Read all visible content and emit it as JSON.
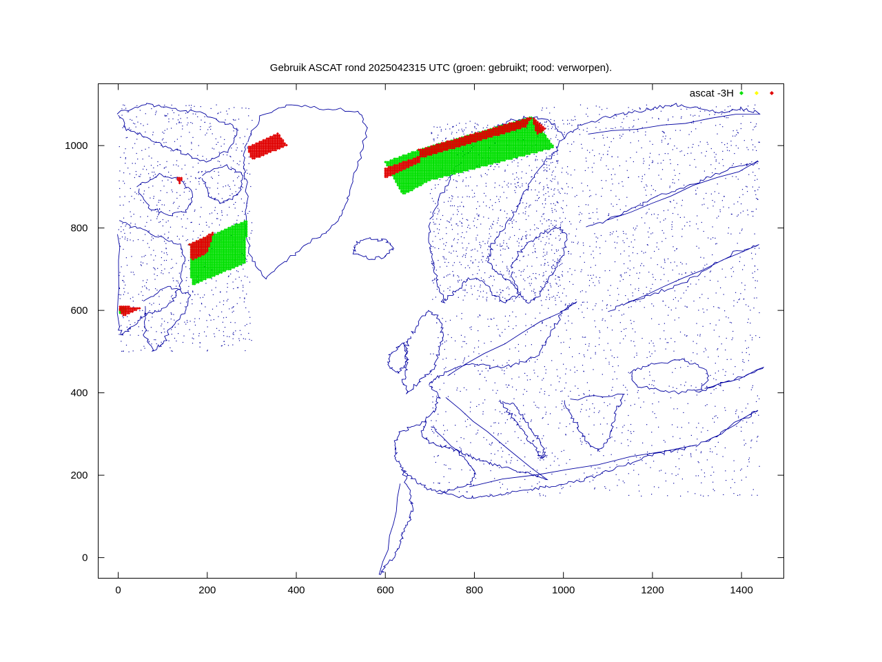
{
  "chart_data": {
    "type": "scatter",
    "title": "Gebruik ASCAT rond 2025042315 UTC (groen: gebruikt; rood: verworpen).",
    "xlabel": "",
    "ylabel": "",
    "xlim": [
      -45,
      1495
    ],
    "ylim": [
      -50,
      1150
    ],
    "x_ticks": [
      0,
      200,
      400,
      600,
      800,
      1000,
      1200,
      1400
    ],
    "y_ticks": [
      0,
      200,
      400,
      600,
      800,
      1000
    ],
    "grid": false,
    "legend": {
      "placement": "top-right",
      "label": "ascat -3H"
    },
    "colors": {
      "used": "#00e000",
      "marginal": "#ffff00",
      "rejected": "#e00000",
      "coastline": "#0000a0"
    },
    "series": [
      {
        "role": "used",
        "color": "#00e000",
        "regions": [
          {
            "polygon": [
              [
                160,
                760
              ],
              [
                290,
                820
              ],
              [
                285,
                715
              ],
              [
                165,
                660
              ]
            ]
          },
          {
            "polygon": [
              [
                640,
                880
              ],
              [
                600,
                960
              ],
              [
                675,
                990
              ],
              [
                930,
                1070
              ],
              [
                980,
                995
              ],
              [
                700,
                915
              ]
            ]
          },
          {
            "polygon": [
              [
                0,
                605
              ],
              [
                15,
                607
              ],
              [
                18,
                595
              ],
              [
                2,
                590
              ]
            ]
          }
        ]
      },
      {
        "role": "rejected",
        "color": "#e00000",
        "regions": [
          {
            "polygon": [
              [
                290,
                995
              ],
              [
                360,
                1030
              ],
              [
                380,
                1000
              ],
              [
                300,
                965
              ]
            ]
          },
          {
            "polygon": [
              [
                600,
                945
              ],
              [
                680,
                975
              ],
              [
                680,
                960
              ],
              [
                600,
                920
              ]
            ]
          },
          {
            "polygon": [
              [
                675,
                990
              ],
              [
                930,
                1070
              ],
              [
                915,
                1045
              ],
              [
                680,
                970
              ]
            ]
          },
          {
            "polygon": [
              [
                930,
                1070
              ],
              [
                960,
                1040
              ],
              [
                940,
                1025
              ]
            ]
          },
          {
            "polygon": [
              [
                160,
                760
              ],
              [
                215,
                790
              ],
              [
                200,
                740
              ],
              [
                165,
                720
              ]
            ]
          },
          {
            "polygon": [
              [
                130,
                920
              ],
              [
                145,
                925
              ],
              [
                140,
                905
              ]
            ]
          },
          {
            "polygon": [
              [
                0,
                610
              ],
              [
                55,
                608
              ],
              [
                10,
                585
              ]
            ]
          }
        ]
      },
      {
        "role": "marginal",
        "color": "#ffff00",
        "regions": []
      }
    ]
  }
}
